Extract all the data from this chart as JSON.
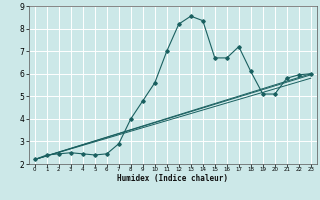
{
  "title": "",
  "xlabel": "Humidex (Indice chaleur)",
  "ylabel": "",
  "bg_color": "#cce8e8",
  "grid_color": "#ffffff",
  "line_color": "#1a6060",
  "xlim": [
    -0.5,
    23.5
  ],
  "ylim": [
    2,
    9
  ],
  "xticks": [
    0,
    1,
    2,
    3,
    4,
    5,
    6,
    7,
    8,
    9,
    10,
    11,
    12,
    13,
    14,
    15,
    16,
    17,
    18,
    19,
    20,
    21,
    22,
    23
  ],
  "yticks": [
    2,
    3,
    4,
    5,
    6,
    7,
    8,
    9
  ],
  "series": [
    [
      0,
      2.2
    ],
    [
      1,
      2.4
    ],
    [
      2,
      2.45
    ],
    [
      3,
      2.5
    ],
    [
      4,
      2.45
    ],
    [
      5,
      2.4
    ],
    [
      6,
      2.45
    ],
    [
      7,
      2.9
    ],
    [
      8,
      4.0
    ],
    [
      9,
      4.8
    ],
    [
      10,
      5.6
    ],
    [
      11,
      7.0
    ],
    [
      12,
      8.2
    ],
    [
      13,
      8.55
    ],
    [
      14,
      8.35
    ],
    [
      15,
      6.7
    ],
    [
      16,
      6.7
    ],
    [
      17,
      7.2
    ],
    [
      18,
      6.1
    ],
    [
      19,
      5.1
    ],
    [
      20,
      5.1
    ],
    [
      21,
      5.8
    ],
    [
      22,
      5.95
    ],
    [
      23,
      6.0
    ]
  ],
  "line2": [
    [
      0,
      2.2
    ],
    [
      23,
      6.0
    ]
  ],
  "line3": [
    [
      0,
      2.2
    ],
    [
      23,
      5.8
    ]
  ],
  "line4": [
    [
      0,
      2.2
    ],
    [
      23,
      5.95
    ]
  ]
}
